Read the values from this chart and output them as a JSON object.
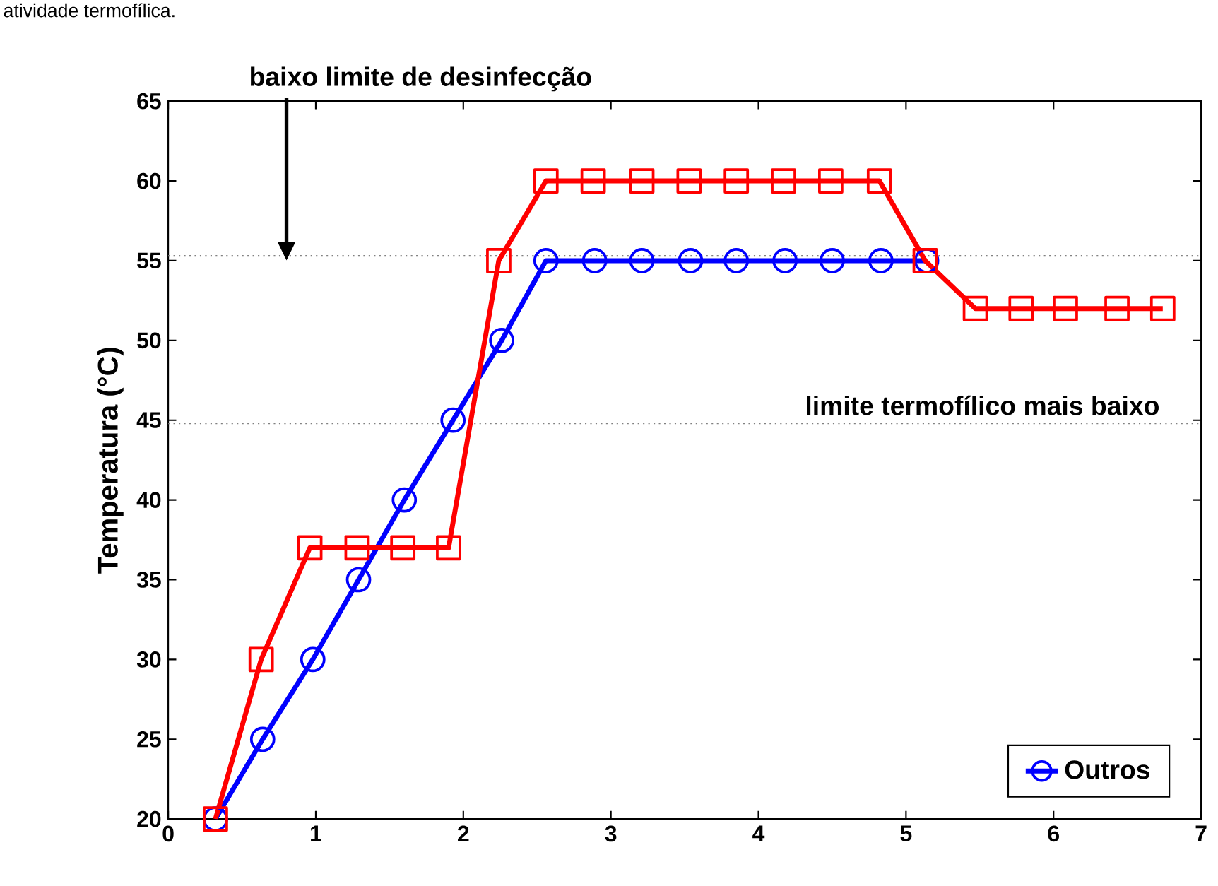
{
  "chart_data": {
    "type": "line",
    "ylabel": "Temperatura (°C)",
    "xlim": [
      0,
      7
    ],
    "xticks": [
      0,
      1,
      2,
      3,
      4,
      5,
      6,
      7
    ],
    "ylim": [
      20,
      65
    ],
    "yticks": [
      20,
      25,
      30,
      35,
      40,
      45,
      50,
      55,
      60,
      65
    ],
    "grid": false,
    "legend": "bottom right",
    "line_style": "solid",
    "series": [
      {
        "name": "Outros",
        "color": "#0000ff",
        "marker": "circle",
        "x": [
          0.32,
          0.64,
          0.98,
          1.29,
          1.6,
          1.93,
          2.26,
          2.56,
          2.89,
          3.21,
          3.54,
          3.85,
          4.18,
          4.5,
          4.83,
          5.14
        ],
        "values": [
          20,
          25,
          30,
          35,
          40,
          45,
          50,
          55,
          55,
          55,
          55,
          55,
          55,
          55,
          55,
          55
        ]
      },
      {
        "color": "#ff0000",
        "marker": "square",
        "x": [
          0.32,
          0.63,
          0.96,
          1.28,
          1.59,
          1.9,
          2.24,
          2.56,
          2.88,
          3.21,
          3.53,
          3.85,
          4.17,
          4.49,
          4.82,
          5.13,
          5.47,
          5.78,
          6.08,
          6.43,
          6.74
        ],
        "values": [
          20,
          30,
          37,
          37,
          37,
          37,
          55,
          60,
          60,
          60,
          60,
          60,
          60,
          60,
          60,
          55,
          52,
          52,
          52,
          52,
          52
        ]
      }
    ],
    "ref_lines": [
      {
        "axis": "y",
        "value": 55.3,
        "color": "#808080",
        "line_style": "dotted"
      },
      {
        "axis": "y",
        "value": 44.8,
        "label": "limite termofílico mais baixo",
        "color": "#808080",
        "line_style": "dotted"
      }
    ],
    "annotations": [
      "atividade termofílica.",
      "baixo limite de desinfecção"
    ]
  }
}
